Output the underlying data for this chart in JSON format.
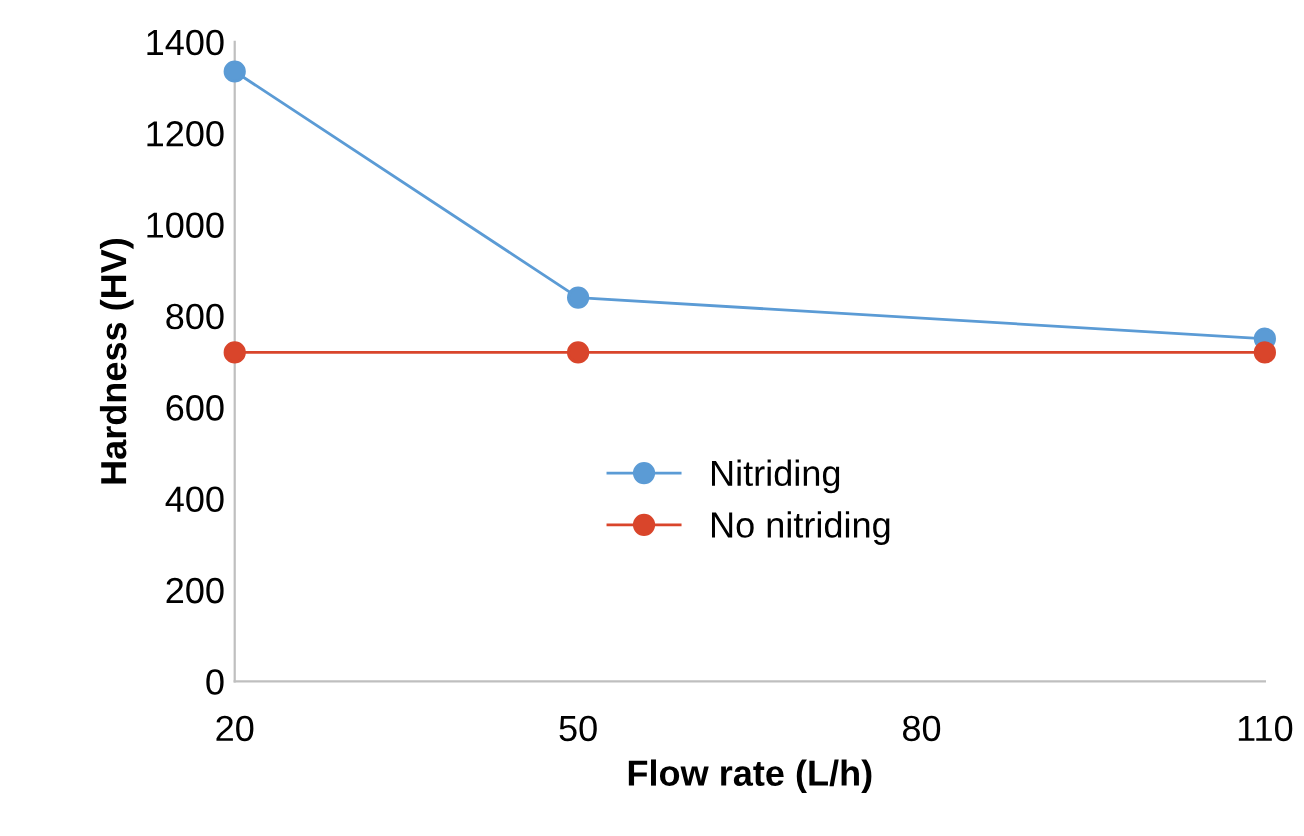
{
  "chart_data": {
    "type": "line",
    "xlabel": "Flow rate (L/h)",
    "ylabel": "Hardness (HV)",
    "x": [
      20,
      50,
      110
    ],
    "series": [
      {
        "name": "Nitriding",
        "color": "#5b9bd5",
        "values": [
          1335,
          840,
          750
        ]
      },
      {
        "name": "No nitriding",
        "color": "#d9452b",
        "values": [
          720,
          720,
          720
        ]
      }
    ],
    "xlim": [
      20,
      110
    ],
    "xticks": [
      20,
      50,
      80,
      110
    ],
    "ylim": [
      0,
      1400
    ],
    "yticks": [
      0,
      200,
      400,
      600,
      800,
      1000,
      1200,
      1400
    ],
    "grid": false,
    "legend": "center",
    "marker": "circle",
    "line_style": "solid"
  }
}
